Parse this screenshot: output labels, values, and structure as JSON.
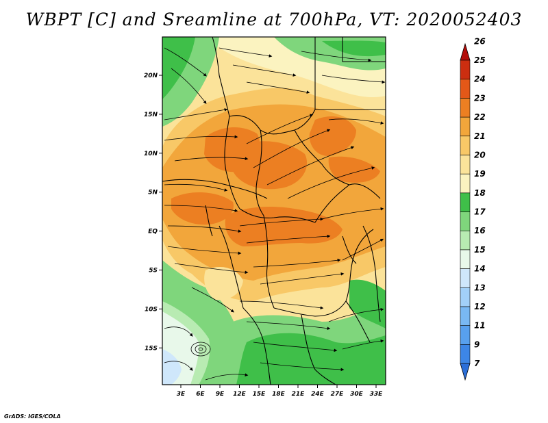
{
  "title": "WBPT [C] and Sreamline at 700hPa, VT: 2020052403",
  "credit": "GrADS: IGES/COLA",
  "map": {
    "variable": "WBPT",
    "units": "C",
    "level": "700hPa",
    "valid_time": "2020052403",
    "lon_ticks": [
      "3E",
      "6E",
      "9E",
      "12E",
      "15E",
      "18E",
      "21E",
      "24E",
      "27E",
      "30E",
      "33E"
    ],
    "lat_ticks": [
      "20N",
      "15N",
      "10N",
      "5N",
      "EQ",
      "5S",
      "10S",
      "15S"
    ]
  },
  "colorbar": {
    "labels": [
      "7",
      "9",
      "11",
      "12",
      "13",
      "14",
      "15",
      "16",
      "17",
      "18",
      "19",
      "20",
      "21",
      "22",
      "23",
      "24",
      "25",
      "26"
    ],
    "colors": [
      "#2c6fd8",
      "#3d86e6",
      "#58a0ee",
      "#79b8f3",
      "#a2d0f8",
      "#cfe7fb",
      "#e8f8ea",
      "#b8ebb2",
      "#7fd67c",
      "#3fbf49",
      "#fbf3c0",
      "#fbe39a",
      "#f8c867",
      "#f2a63b",
      "#ec7f22",
      "#e35818",
      "#cc2e10",
      "#b30d0a"
    ]
  },
  "colors": {
    "coast": "#000000",
    "stream": "#000000"
  }
}
